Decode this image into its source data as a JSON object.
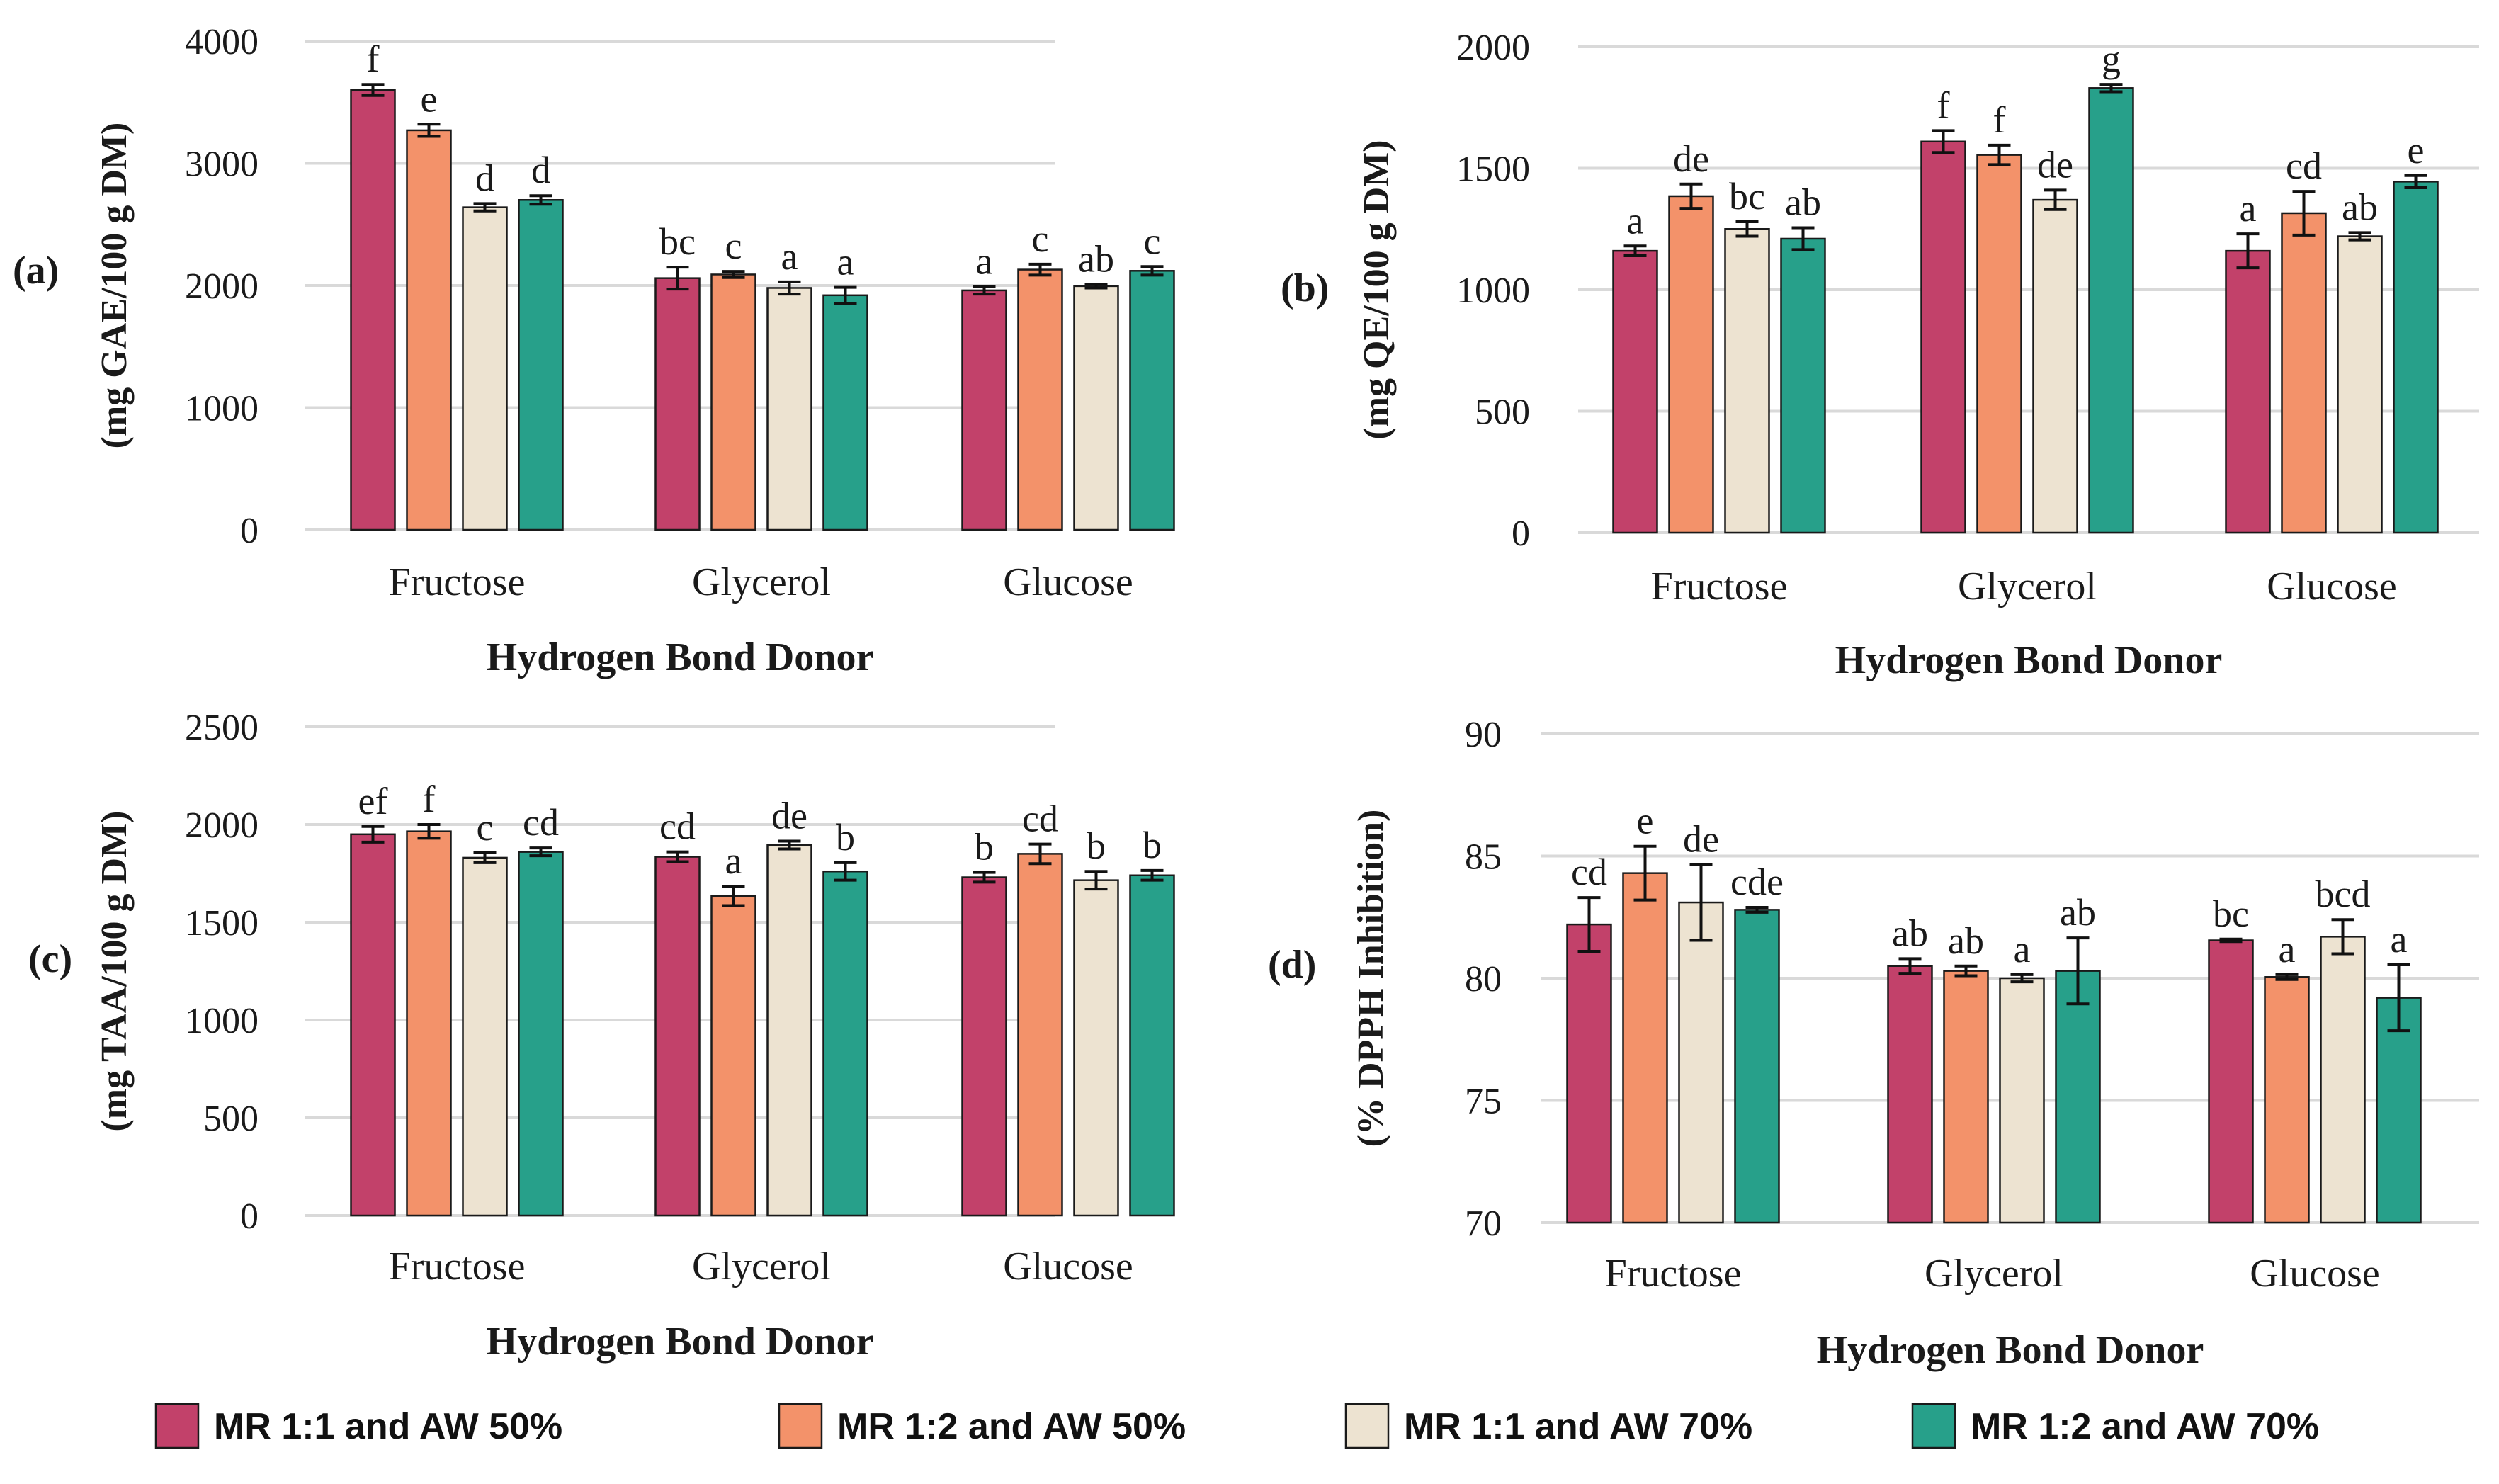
{
  "legend": [
    {
      "label": "MR 1:1 and AW 50%",
      "color": "#c2416a"
    },
    {
      "label": "MR 1:2 and AW 50%",
      "color": "#f3926a"
    },
    {
      "label": "MR 1:1 and AW 70%",
      "color": "#ede3d1"
    },
    {
      "label": "MR 1:2 and AW 70%",
      "color": "#27a08a"
    }
  ],
  "chart_data": [
    {
      "panel": "(a)",
      "type": "bar",
      "ylabel": "(mg GAE/100 g DM)",
      "xlabel": "Hydrogen Bond Donor",
      "categories": [
        "Fructose",
        "Glycerol",
        "Glucose"
      ],
      "ylim": [
        0,
        4000
      ],
      "yticks": [
        0,
        1000,
        2000,
        3000,
        4000
      ],
      "grid": true,
      "series": [
        {
          "name": "MR 1:1 and AW 50%",
          "values": [
            3600,
            2060,
            1960
          ],
          "errors": [
            45,
            90,
            30
          ],
          "letters": [
            "f",
            "bc",
            "a"
          ]
        },
        {
          "name": "MR 1:2 and AW 50%",
          "values": [
            3270,
            2090,
            2130
          ],
          "errors": [
            50,
            25,
            45
          ],
          "letters": [
            "e",
            "c",
            "c"
          ]
        },
        {
          "name": "MR 1:1 and AW 70%",
          "values": [
            2640,
            1980,
            1995
          ],
          "errors": [
            30,
            50,
            15
          ],
          "letters": [
            "d",
            "a",
            "ab"
          ]
        },
        {
          "name": "MR 1:2 and AW 70%",
          "values": [
            2700,
            1920,
            2120
          ],
          "errors": [
            35,
            65,
            35
          ],
          "letters": [
            "d",
            "a",
            "c"
          ]
        }
      ]
    },
    {
      "panel": "(b)",
      "type": "bar",
      "ylabel": "(mg QE/100 g DM)",
      "xlabel": "Hydrogen Bond Donor",
      "categories": [
        "Fructose",
        "Glycerol",
        "Glucose"
      ],
      "ylim": [
        0,
        2000
      ],
      "yticks": [
        0,
        500,
        1000,
        1500,
        2000
      ],
      "grid": true,
      "series": [
        {
          "name": "MR 1:1 and AW 50%",
          "values": [
            1160,
            1610,
            1160
          ],
          "errors": [
            20,
            45,
            70
          ],
          "letters": [
            "a",
            "f",
            "a"
          ]
        },
        {
          "name": "MR 1:2 and AW 50%",
          "values": [
            1385,
            1555,
            1315
          ],
          "errors": [
            50,
            40,
            90
          ],
          "letters": [
            "de",
            "f",
            "cd"
          ]
        },
        {
          "name": "MR 1:1 and AW 70%",
          "values": [
            1250,
            1370,
            1220
          ],
          "errors": [
            30,
            40,
            15
          ],
          "letters": [
            "bc",
            "de",
            "ab"
          ]
        },
        {
          "name": "MR 1:2 and AW 70%",
          "values": [
            1210,
            1830,
            1445
          ],
          "errors": [
            45,
            15,
            25
          ],
          "letters": [
            "ab",
            "g",
            "e"
          ]
        }
      ]
    },
    {
      "panel": "(c)",
      "type": "bar",
      "ylabel": "(mg TAA/100 g DM)",
      "xlabel": "Hydrogen Bond Donor",
      "categories": [
        "Fructose",
        "Glycerol",
        "Glucose"
      ],
      "ylim": [
        0,
        2500
      ],
      "yticks": [
        0,
        500,
        1000,
        1500,
        2000,
        2500
      ],
      "grid": true,
      "series": [
        {
          "name": "MR 1:1 and AW 50%",
          "values": [
            1950,
            1835,
            1730
          ],
          "errors": [
            40,
            25,
            25
          ],
          "letters": [
            "ef",
            "cd",
            "b"
          ]
        },
        {
          "name": "MR 1:2 and AW 50%",
          "values": [
            1965,
            1635,
            1850
          ],
          "errors": [
            35,
            50,
            50
          ],
          "letters": [
            "f",
            "a",
            "cd"
          ]
        },
        {
          "name": "MR 1:1 and AW 70%",
          "values": [
            1830,
            1895,
            1715
          ],
          "errors": [
            25,
            20,
            45
          ],
          "letters": [
            "c",
            "de",
            "b"
          ]
        },
        {
          "name": "MR 1:2 and AW 70%",
          "values": [
            1860,
            1760,
            1740
          ],
          "errors": [
            20,
            45,
            25
          ],
          "letters": [
            "cd",
            "b",
            "b"
          ]
        }
      ]
    },
    {
      "panel": "(d)",
      "type": "bar",
      "ylabel": "(% DPPH Inhibition)",
      "xlabel": "Hydrogen Bond Donor",
      "categories": [
        "Fructose",
        "Glycerol",
        "Glucose"
      ],
      "ylim": [
        70,
        90
      ],
      "yticks": [
        70,
        75,
        80,
        85,
        90
      ],
      "grid": true,
      "series": [
        {
          "name": "MR 1:1 and AW 50%",
          "values": [
            82.2,
            80.5,
            81.55
          ],
          "errors": [
            1.1,
            0.3,
            0.05
          ],
          "letters": [
            "cd",
            "ab",
            "bc"
          ]
        },
        {
          "name": "MR 1:2 and AW 50%",
          "values": [
            84.3,
            80.3,
            80.05
          ],
          "errors": [
            1.1,
            0.2,
            0.1
          ],
          "letters": [
            "e",
            "ab",
            "a"
          ]
        },
        {
          "name": "MR 1:1 and AW 70%",
          "values": [
            83.1,
            80.0,
            81.7
          ],
          "errors": [
            1.55,
            0.15,
            0.7
          ],
          "letters": [
            "de",
            "a",
            "bcd"
          ]
        },
        {
          "name": "MR 1:2 and AW 70%",
          "values": [
            82.8,
            80.3,
            79.2
          ],
          "errors": [
            0.1,
            1.35,
            1.35
          ],
          "letters": [
            "cde",
            "ab",
            "a"
          ]
        }
      ]
    }
  ]
}
